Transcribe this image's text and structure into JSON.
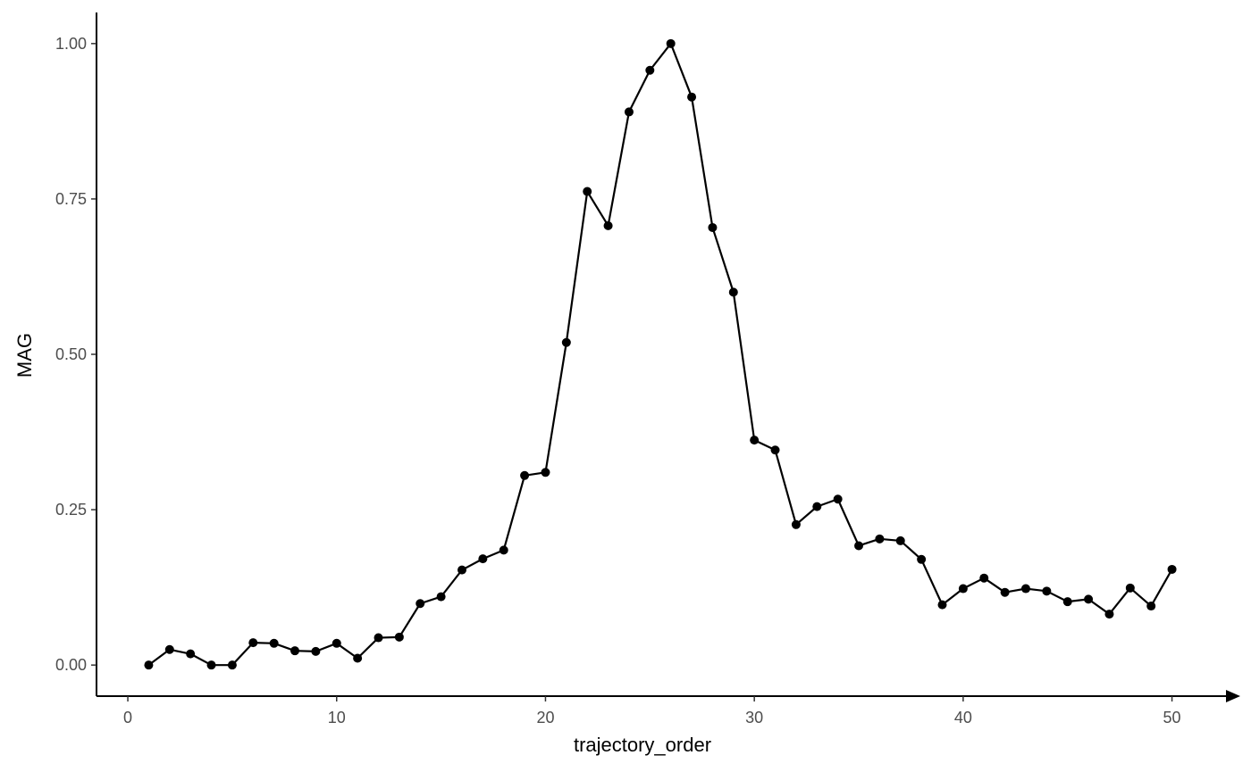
{
  "chart_data": {
    "type": "line",
    "xlabel": "trajectory_order",
    "ylabel": "MAG",
    "xlim": [
      -1.5,
      52.5
    ],
    "ylim": [
      -0.05,
      1.05
    ],
    "x_ticks": [
      0,
      10,
      20,
      30,
      40,
      50
    ],
    "x_tick_labels": [
      "0",
      "10",
      "20",
      "30",
      "40",
      "50"
    ],
    "y_ticks": [
      0,
      0.25,
      0.5,
      0.75,
      1.0
    ],
    "y_tick_labels": [
      "0.00",
      "0.25",
      "0.50",
      "0.75",
      "1.00"
    ],
    "grid": false,
    "x_axis_arrow": true,
    "line_color": "#000000",
    "point_color": "#000000",
    "series": [
      {
        "x": [
          1,
          2,
          3,
          4,
          5,
          6,
          7,
          8,
          9,
          10,
          11,
          12,
          13,
          14,
          15,
          16,
          17,
          18,
          19,
          20,
          21,
          22,
          23,
          24,
          25,
          26,
          27,
          28,
          29,
          30,
          31,
          32,
          33,
          34,
          35,
          36,
          37,
          38,
          39,
          40,
          41,
          42,
          43,
          44,
          45,
          46,
          47,
          48,
          49,
          50
        ],
        "values": [
          0.0,
          0.025,
          0.018,
          0.0,
          0.0,
          0.036,
          0.035,
          0.023,
          0.022,
          0.035,
          0.011,
          0.044,
          0.045,
          0.099,
          0.11,
          0.153,
          0.171,
          0.185,
          0.305,
          0.31,
          0.519,
          0.762,
          0.707,
          0.89,
          0.957,
          1.0,
          0.914,
          0.704,
          0.6,
          0.362,
          0.346,
          0.226,
          0.255,
          0.267,
          0.192,
          0.203,
          0.2,
          0.17,
          0.097,
          0.123,
          0.14,
          0.117,
          0.123,
          0.119,
          0.102,
          0.106,
          0.082,
          0.124,
          0.095,
          0.154
        ]
      }
    ]
  }
}
